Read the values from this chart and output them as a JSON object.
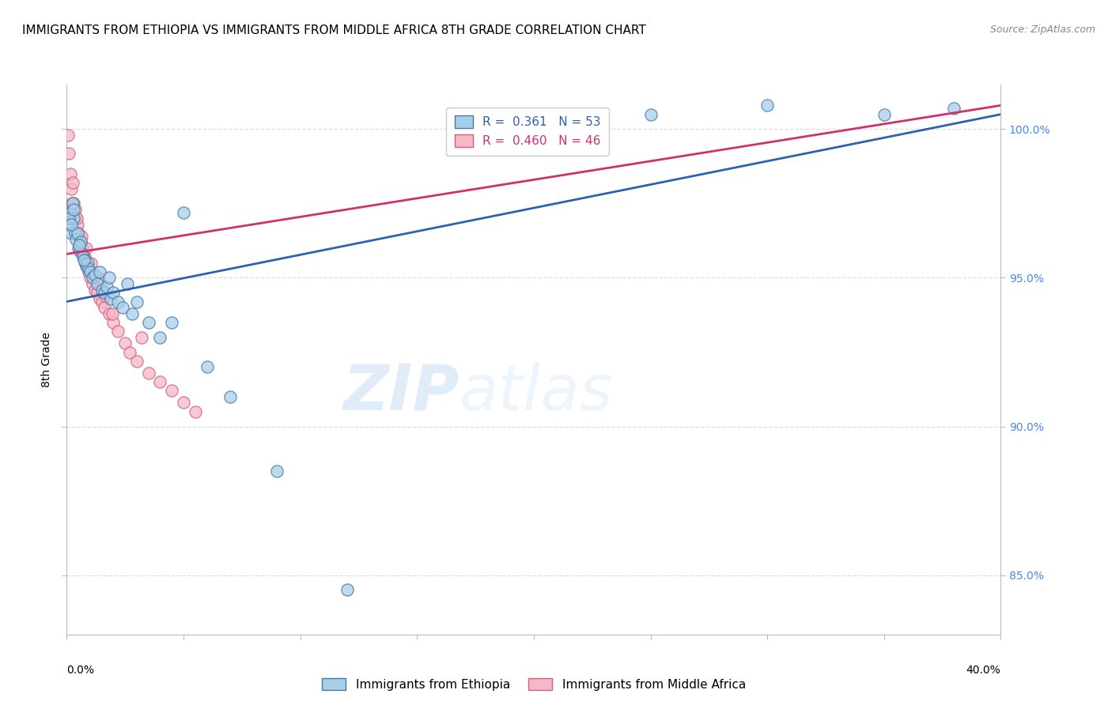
{
  "title": "IMMIGRANTS FROM ETHIOPIA VS IMMIGRANTS FROM MIDDLE AFRICA 8TH GRADE CORRELATION CHART",
  "source": "Source: ZipAtlas.com",
  "ylabel": "8th Grade",
  "xlim": [
    0.0,
    40.0
  ],
  "ylim": [
    83.0,
    101.5
  ],
  "yticks": [
    85.0,
    90.0,
    95.0,
    100.0
  ],
  "ytick_labels": [
    "85.0%",
    "90.0%",
    "95.0%",
    "100.0%"
  ],
  "legend_r1": "R =  0.361",
  "legend_n1": "N = 53",
  "legend_r2": "R =  0.460",
  "legend_n2": "N = 46",
  "blue_color": "#a8cfe8",
  "pink_color": "#f4b8c8",
  "blue_edge_color": "#4878a8",
  "pink_edge_color": "#d4607a",
  "blue_line_color": "#3060b0",
  "pink_line_color": "#d03070",
  "watermark_zip": "ZIP",
  "watermark_atlas": "atlas",
  "blue_scatter_x": [
    0.05,
    0.1,
    0.15,
    0.2,
    0.25,
    0.3,
    0.35,
    0.4,
    0.45,
    0.5,
    0.55,
    0.6,
    0.65,
    0.7,
    0.75,
    0.8,
    0.85,
    0.9,
    0.95,
    1.0,
    1.1,
    1.2,
    1.3,
    1.4,
    1.5,
    1.6,
    1.7,
    1.8,
    1.9,
    2.0,
    2.2,
    2.4,
    2.6,
    2.8,
    3.0,
    3.5,
    4.0,
    4.5,
    5.0,
    6.0,
    7.0,
    9.0,
    12.0,
    20.0,
    25.0,
    30.0,
    35.0,
    38.0,
    0.08,
    0.18,
    0.28,
    0.52,
    0.72
  ],
  "blue_scatter_y": [
    96.8,
    97.0,
    97.2,
    96.5,
    97.5,
    97.0,
    96.5,
    96.3,
    96.5,
    96.0,
    95.9,
    96.2,
    95.8,
    95.7,
    95.6,
    95.5,
    95.4,
    95.5,
    95.3,
    95.2,
    95.0,
    95.1,
    94.8,
    95.2,
    94.6,
    94.5,
    94.7,
    95.0,
    94.3,
    94.5,
    94.2,
    94.0,
    94.8,
    93.8,
    94.2,
    93.5,
    93.0,
    93.5,
    97.2,
    92.0,
    91.0,
    88.5,
    84.5,
    100.2,
    100.5,
    100.8,
    100.5,
    100.7,
    97.0,
    96.8,
    97.3,
    96.1,
    95.6
  ],
  "pink_scatter_x": [
    0.05,
    0.1,
    0.15,
    0.2,
    0.25,
    0.3,
    0.35,
    0.4,
    0.45,
    0.5,
    0.55,
    0.6,
    0.65,
    0.7,
    0.75,
    0.8,
    0.85,
    0.9,
    0.95,
    1.0,
    1.1,
    1.2,
    1.3,
    1.4,
    1.5,
    1.6,
    1.8,
    2.0,
    2.2,
    2.5,
    2.7,
    3.0,
    3.2,
    3.5,
    4.0,
    4.5,
    5.0,
    5.5,
    0.22,
    0.42,
    0.62,
    0.82,
    1.05,
    1.35,
    1.65,
    1.95
  ],
  "pink_scatter_y": [
    99.8,
    99.2,
    98.5,
    98.0,
    98.2,
    97.5,
    97.3,
    97.0,
    96.8,
    96.5,
    96.3,
    96.2,
    96.0,
    95.8,
    95.7,
    95.5,
    95.4,
    95.3,
    95.2,
    95.0,
    94.8,
    94.6,
    94.5,
    94.3,
    94.2,
    94.0,
    93.8,
    93.5,
    93.2,
    92.8,
    92.5,
    92.2,
    93.0,
    91.8,
    91.5,
    91.2,
    90.8,
    90.5,
    97.5,
    97.0,
    96.4,
    96.0,
    95.5,
    95.0,
    94.4,
    93.8
  ],
  "blue_line_x": [
    0.0,
    40.0
  ],
  "blue_line_y": [
    94.2,
    100.5
  ],
  "pink_line_x": [
    0.0,
    40.0
  ],
  "pink_line_y": [
    95.8,
    100.8
  ],
  "background_color": "#ffffff",
  "grid_color": "#dddddd",
  "title_fontsize": 11,
  "axis_label_fontsize": 10,
  "tick_fontsize": 10,
  "scatter_size": 120
}
